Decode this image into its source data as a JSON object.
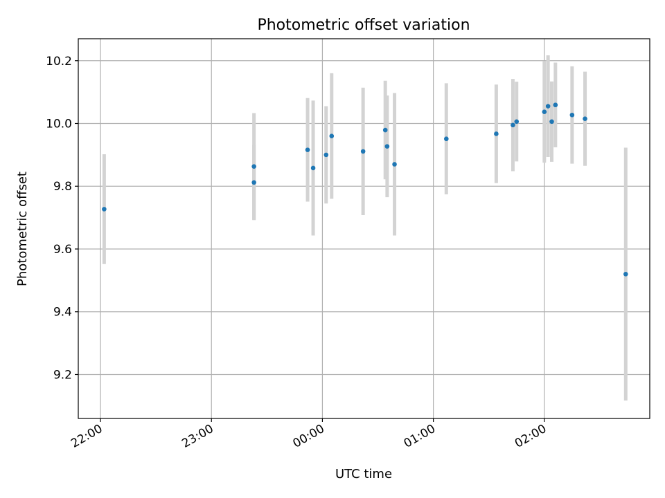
{
  "chart_data": {
    "type": "scatter",
    "title": "Photometric offset variation",
    "xlabel": "UTC time",
    "ylabel": "Photometric offset",
    "grid": true,
    "xlim": [
      "21:48",
      "02:57"
    ],
    "ylim": [
      9.06,
      10.27
    ],
    "x_ticks": [
      "22:00",
      "23:00",
      "00:00",
      "01:00",
      "02:00"
    ],
    "y_ticks": [
      "9.2",
      "9.4",
      "9.6",
      "9.8",
      "10.0",
      "10.2"
    ],
    "colors": {
      "point": "#1f77b4",
      "errorbar": "#d3d3d3",
      "grid": "#b0b0b0"
    },
    "series": [
      {
        "points": [
          {
            "x": "22:02",
            "y": 9.727,
            "yerr": 0.175
          },
          {
            "x": "23:23",
            "y": 9.863,
            "yerr": 0.17
          },
          {
            "x": "23:23",
            "y": 9.812,
            "yerr": 0.12
          },
          {
            "x": "23:52",
            "y": 9.916,
            "yerr": 0.165
          },
          {
            "x": "23:55",
            "y": 9.858,
            "yerr": 0.215
          },
          {
            "x": "00:02",
            "y": 9.9,
            "yerr": 0.155
          },
          {
            "x": "00:05",
            "y": 9.96,
            "yerr": 0.2
          },
          {
            "x": "00:22",
            "y": 9.911,
            "yerr": 0.203
          },
          {
            "x": "00:34",
            "y": 9.979,
            "yerr": 0.157
          },
          {
            "x": "00:35",
            "y": 9.927,
            "yerr": 0.162
          },
          {
            "x": "00:39",
            "y": 9.87,
            "yerr": 0.227
          },
          {
            "x": "01:07",
            "y": 9.951,
            "yerr": 0.177
          },
          {
            "x": "01:34",
            "y": 9.967,
            "yerr": 0.157
          },
          {
            "x": "01:43",
            "y": 9.995,
            "yerr": 0.147
          },
          {
            "x": "01:45",
            "y": 10.006,
            "yerr": 0.127
          },
          {
            "x": "02:00",
            "y": 10.037,
            "yerr": 0.162
          },
          {
            "x": "02:02",
            "y": 10.055,
            "yerr": 0.162
          },
          {
            "x": "02:04",
            "y": 10.006,
            "yerr": 0.128
          },
          {
            "x": "02:06",
            "y": 10.059,
            "yerr": 0.135
          },
          {
            "x": "02:15",
            "y": 10.027,
            "yerr": 0.155
          },
          {
            "x": "02:22",
            "y": 10.015,
            "yerr": 0.15
          },
          {
            "x": "02:44",
            "y": 9.52,
            "yerr": 0.403
          }
        ]
      }
    ]
  }
}
